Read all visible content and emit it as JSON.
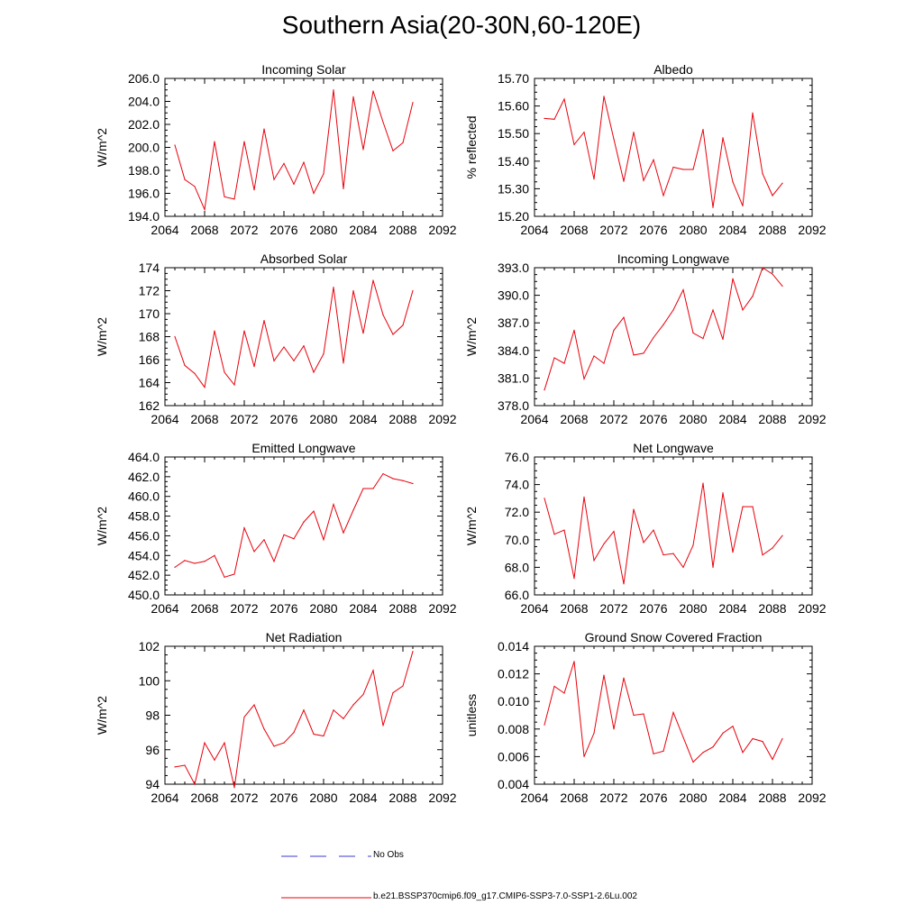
{
  "figure": {
    "title": "Southern Asia(20-30N,60-120E)",
    "line_color": "#e8000b",
    "obs_color": "#3a3ad6"
  },
  "legend": {
    "obs_label": "No Obs",
    "model_label": "b.e21.BSSP370cmip6.f09_g17.CMIP6-SSP3-7.0-SSP1-2.6Lu.002"
  },
  "chart_data": [
    {
      "type": "line",
      "title": "Incoming Solar",
      "ylabel": "W/m^2",
      "xlim": [
        2064,
        2092
      ],
      "ylim": [
        194.0,
        206.0
      ],
      "xticks": [
        "2064",
        "2068",
        "2072",
        "2076",
        "2080",
        "2084",
        "2088",
        "2092"
      ],
      "yticks": [
        "194.0",
        "196.0",
        "198.0",
        "200.0",
        "202.0",
        "204.0",
        "206.0"
      ],
      "x": [
        2065,
        2066,
        2067,
        2068,
        2069,
        2070,
        2071,
        2072,
        2073,
        2074,
        2075,
        2076,
        2077,
        2078,
        2079,
        2080,
        2081,
        2082,
        2083,
        2084,
        2085,
        2086,
        2087,
        2088,
        2089
      ],
      "y": [
        200.2,
        197.2,
        196.6,
        194.6,
        200.5,
        195.7,
        195.5,
        200.5,
        196.3,
        201.6,
        197.2,
        198.6,
        196.8,
        198.7,
        196.0,
        197.7,
        205.0,
        196.4,
        204.4,
        199.8,
        204.9,
        202.2,
        199.7,
        200.4,
        203.9
      ]
    },
    {
      "type": "line",
      "title": "Albedo",
      "ylabel": "% reflected",
      "xlim": [
        2064,
        2092
      ],
      "ylim": [
        15.2,
        15.7
      ],
      "xticks": [
        "2064",
        "2068",
        "2072",
        "2076",
        "2080",
        "2084",
        "2088",
        "2092"
      ],
      "yticks": [
        "15.20",
        "15.30",
        "15.40",
        "15.50",
        "15.60",
        "15.70"
      ],
      "x": [
        2065,
        2066,
        2067,
        2068,
        2069,
        2070,
        2071,
        2072,
        2073,
        2074,
        2075,
        2076,
        2077,
        2078,
        2079,
        2080,
        2081,
        2082,
        2083,
        2084,
        2085,
        2086,
        2087,
        2088,
        2089
      ],
      "y": [
        15.555,
        15.552,
        15.625,
        15.46,
        15.505,
        15.335,
        15.635,
        15.48,
        15.327,
        15.505,
        15.33,
        15.405,
        15.275,
        15.378,
        15.37,
        15.37,
        15.515,
        15.232,
        15.485,
        15.325,
        15.238,
        15.575,
        15.355,
        15.275,
        15.32
      ]
    },
    {
      "type": "line",
      "title": "Absorbed Solar",
      "ylabel": "W/m^2",
      "xlim": [
        2064,
        2092
      ],
      "ylim": [
        162,
        174
      ],
      "xticks": [
        "2064",
        "2068",
        "2072",
        "2076",
        "2080",
        "2084",
        "2088",
        "2092"
      ],
      "yticks": [
        "162",
        "164",
        "166",
        "168",
        "170",
        "172",
        "174"
      ],
      "x": [
        2065,
        2066,
        2067,
        2068,
        2069,
        2070,
        2071,
        2072,
        2073,
        2074,
        2075,
        2076,
        2077,
        2078,
        2079,
        2080,
        2081,
        2082,
        2083,
        2084,
        2085,
        2086,
        2087,
        2088,
        2089
      ],
      "y": [
        168.0,
        165.5,
        164.8,
        163.6,
        168.5,
        164.9,
        163.8,
        168.5,
        165.4,
        169.4,
        165.9,
        167.1,
        165.9,
        167.2,
        164.9,
        166.5,
        172.3,
        165.7,
        172.0,
        168.3,
        172.9,
        169.9,
        168.2,
        169.0,
        172.0
      ]
    },
    {
      "type": "line",
      "title": "Incoming Longwave",
      "ylabel": "W/m^2",
      "xlim": [
        2064,
        2092
      ],
      "ylim": [
        378.0,
        393.0
      ],
      "xticks": [
        "2064",
        "2068",
        "2072",
        "2076",
        "2080",
        "2084",
        "2088",
        "2092"
      ],
      "yticks": [
        "378.0",
        "381.0",
        "384.0",
        "387.0",
        "390.0",
        "393.0"
      ],
      "x": [
        2065,
        2066,
        2067,
        2068,
        2069,
        2070,
        2071,
        2072,
        2073,
        2074,
        2075,
        2076,
        2077,
        2078,
        2079,
        2080,
        2081,
        2082,
        2083,
        2084,
        2085,
        2086,
        2087,
        2088,
        2089
      ],
      "y": [
        379.7,
        383.2,
        382.6,
        386.2,
        380.9,
        383.4,
        382.6,
        386.2,
        387.6,
        383.5,
        383.7,
        385.4,
        386.8,
        388.4,
        390.6,
        385.9,
        385.3,
        388.4,
        385.2,
        391.8,
        388.4,
        389.9,
        393.0,
        392.3,
        391.0
      ]
    },
    {
      "type": "line",
      "title": "Emitted Longwave",
      "ylabel": "W/m^2",
      "xlim": [
        2064,
        2092
      ],
      "ylim": [
        450.0,
        464.0
      ],
      "xticks": [
        "2064",
        "2068",
        "2072",
        "2076",
        "2080",
        "2084",
        "2088",
        "2092"
      ],
      "yticks": [
        "450.0",
        "452.0",
        "454.0",
        "456.0",
        "458.0",
        "460.0",
        "462.0",
        "464.0"
      ],
      "x": [
        2065,
        2066,
        2067,
        2068,
        2069,
        2070,
        2071,
        2072,
        2073,
        2074,
        2075,
        2076,
        2077,
        2078,
        2079,
        2080,
        2081,
        2082,
        2083,
        2084,
        2085,
        2086,
        2087,
        2088,
        2089
      ],
      "y": [
        452.8,
        453.5,
        453.2,
        453.4,
        454.0,
        451.8,
        452.1,
        456.8,
        454.4,
        455.6,
        453.4,
        456.1,
        455.7,
        457.4,
        458.5,
        455.6,
        459.2,
        456.3,
        458.6,
        460.8,
        460.8,
        462.3,
        461.8,
        461.6,
        461.3
      ]
    },
    {
      "type": "line",
      "title": "Net Longwave",
      "ylabel": "W/m^2",
      "xlim": [
        2064,
        2092
      ],
      "ylim": [
        66.0,
        76.0
      ],
      "xticks": [
        "2064",
        "2068",
        "2072",
        "2076",
        "2080",
        "2084",
        "2088",
        "2092"
      ],
      "yticks": [
        "66.0",
        "68.0",
        "70.0",
        "72.0",
        "74.0",
        "76.0"
      ],
      "x": [
        2065,
        2066,
        2067,
        2068,
        2069,
        2070,
        2071,
        2072,
        2073,
        2074,
        2075,
        2076,
        2077,
        2078,
        2079,
        2080,
        2081,
        2082,
        2083,
        2084,
        2085,
        2086,
        2087,
        2088,
        2089
      ],
      "y": [
        73.0,
        70.4,
        70.7,
        67.2,
        73.1,
        68.5,
        69.7,
        70.6,
        66.8,
        72.2,
        69.8,
        70.7,
        68.9,
        69.0,
        68.0,
        69.6,
        74.1,
        68.0,
        73.4,
        69.1,
        72.4,
        72.4,
        68.9,
        69.4,
        70.3
      ]
    },
    {
      "type": "line",
      "title": "Net Radiation",
      "ylabel": "W/m^2",
      "xlim": [
        2064,
        2092
      ],
      "ylim": [
        94,
        102
      ],
      "xticks": [
        "2064",
        "2068",
        "2072",
        "2076",
        "2080",
        "2084",
        "2088",
        "2092"
      ],
      "yticks": [
        "94",
        "96",
        "98",
        "100",
        "102"
      ],
      "x": [
        2065,
        2066,
        2067,
        2068,
        2069,
        2070,
        2071,
        2072,
        2073,
        2074,
        2075,
        2076,
        2077,
        2078,
        2079,
        2080,
        2081,
        2082,
        2083,
        2084,
        2085,
        2086,
        2087,
        2088,
        2089
      ],
      "y": [
        95.0,
        95.1,
        94.0,
        96.4,
        95.4,
        96.4,
        93.8,
        97.9,
        98.6,
        97.2,
        96.2,
        96.4,
        97.0,
        98.3,
        96.9,
        96.8,
        98.3,
        97.8,
        98.6,
        99.2,
        100.6,
        97.4,
        99.3,
        99.7,
        101.7
      ]
    },
    {
      "type": "line",
      "title": "Ground Snow Covered Fraction",
      "ylabel": "unitless",
      "xlim": [
        2064,
        2092
      ],
      "ylim": [
        0.004,
        0.014
      ],
      "xticks": [
        "2064",
        "2068",
        "2072",
        "2076",
        "2080",
        "2084",
        "2088",
        "2092"
      ],
      "yticks": [
        "0.004",
        "0.006",
        "0.008",
        "0.010",
        "0.012",
        "0.014"
      ],
      "x": [
        2065,
        2066,
        2067,
        2068,
        2069,
        2070,
        2071,
        2072,
        2073,
        2074,
        2075,
        2076,
        2077,
        2078,
        2079,
        2080,
        2081,
        2082,
        2083,
        2084,
        2085,
        2086,
        2087,
        2088,
        2089
      ],
      "y": [
        0.0083,
        0.0111,
        0.0106,
        0.0129,
        0.006,
        0.0077,
        0.0119,
        0.008,
        0.0117,
        0.009,
        0.0091,
        0.0062,
        0.0064,
        0.0092,
        0.0074,
        0.0056,
        0.0063,
        0.0067,
        0.0077,
        0.0082,
        0.0063,
        0.0073,
        0.0071,
        0.0058,
        0.0073
      ]
    }
  ]
}
